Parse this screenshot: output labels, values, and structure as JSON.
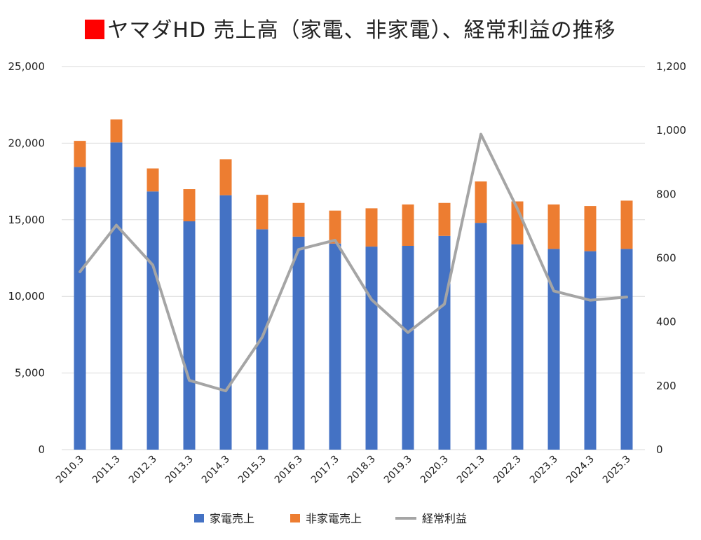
{
  "chart_data": {
    "type": "bar",
    "title": "ヤマダHD 売上高（家電、非家電）、経常利益の推移",
    "title_marker_color": "#ff0000",
    "categories": [
      "2010.3",
      "2011.3",
      "2012.3",
      "2013.3",
      "2014.3",
      "2015.3",
      "2016.3",
      "2017.3",
      "2018.3",
      "2019.3",
      "2020.3",
      "2021.3",
      "2022.3",
      "2023.3",
      "2024.3",
      "2025.3"
    ],
    "stacked": true,
    "series": [
      {
        "name": "家電売上",
        "color": "#4472c4",
        "axis": "left",
        "values": [
          18450,
          20050,
          16850,
          14900,
          16600,
          14380,
          13900,
          13450,
          13250,
          13300,
          13950,
          14800,
          13400,
          13100,
          12950,
          13100
        ]
      },
      {
        "name": "非家電売上",
        "color": "#ed7d31",
        "axis": "left",
        "values": [
          1700,
          1500,
          1500,
          2100,
          2350,
          2250,
          2200,
          2150,
          2500,
          2700,
          2150,
          2700,
          2800,
          2900,
          2950,
          3150
        ]
      },
      {
        "name": "経常利益",
        "type": "line",
        "color": "#a5a5a5",
        "axis": "right",
        "values": [
          557,
          703,
          578,
          217,
          184,
          352,
          627,
          656,
          470,
          367,
          456,
          988,
          755,
          497,
          468,
          478
        ]
      }
    ],
    "y_left": {
      "min": 0,
      "max": 25000,
      "ticks": [
        "0",
        "5,000",
        "10,000",
        "15,000",
        "20,000",
        "25,000"
      ],
      "tick_values": [
        0,
        5000,
        10000,
        15000,
        20000,
        25000
      ]
    },
    "y_right": {
      "min": 0,
      "max": 1200,
      "ticks": [
        "0",
        "200",
        "400",
        "600",
        "800",
        "1,000",
        "1,200"
      ],
      "tick_values": [
        0,
        200,
        400,
        600,
        800,
        1000,
        1200
      ]
    },
    "grid": true,
    "legend_position": "bottom"
  }
}
